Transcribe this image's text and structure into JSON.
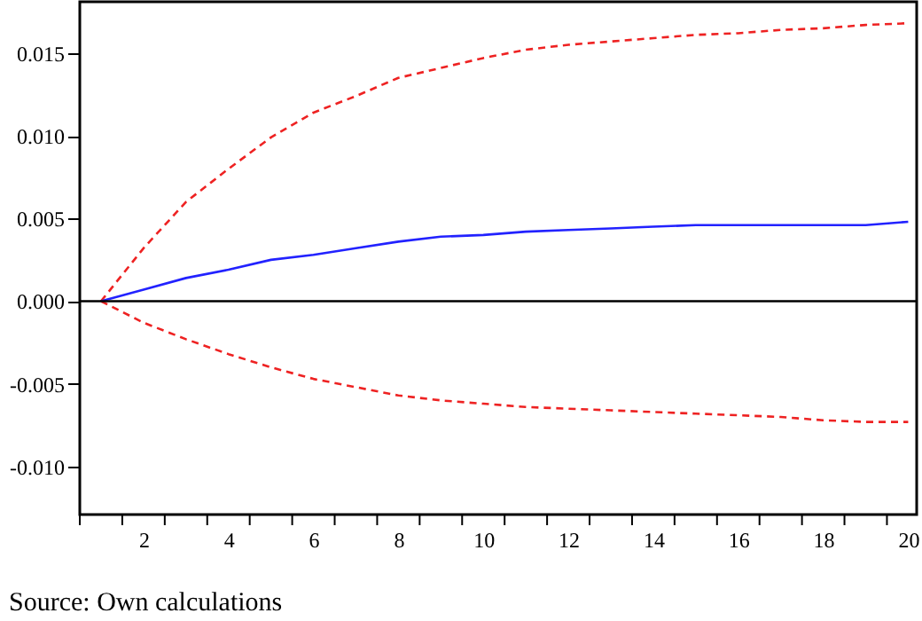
{
  "chart_data": {
    "type": "line",
    "x": [
      1,
      2,
      3,
      4,
      5,
      6,
      7,
      8,
      9,
      10,
      11,
      12,
      13,
      14,
      15,
      16,
      17,
      18,
      19,
      20
    ],
    "series": [
      {
        "color": "#ee2222",
        "line_style": "dashed",
        "values": [
          0,
          0.0032,
          0.006,
          0.008,
          0.0099,
          0.0114,
          0.0124,
          0.0135,
          0.0141,
          0.0147,
          0.0152,
          0.0155,
          0.0157,
          0.0159,
          0.0161,
          0.0162,
          0.0164,
          0.0165,
          0.0167,
          0.0168
        ]
      },
      {
        "color": "#2222ff",
        "line_style": "solid",
        "values": [
          0,
          0.0007,
          0.0014,
          0.0019,
          0.0025,
          0.0028,
          0.0032,
          0.0036,
          0.0039,
          0.004,
          0.0042,
          0.0043,
          0.0044,
          0.0045,
          0.0046,
          0.0046,
          0.0046,
          0.0046,
          0.0046,
          0.0048
        ]
      },
      {
        "color": "#ee2222",
        "line_style": "dashed",
        "values": [
          0,
          -0.0013,
          -0.0023,
          -0.0032,
          -0.004,
          -0.0047,
          -0.0052,
          -0.0057,
          -0.006,
          -0.0062,
          -0.0064,
          -0.0065,
          -0.0066,
          -0.0067,
          -0.0068,
          -0.0069,
          -0.007,
          -0.0072,
          -0.0073,
          -0.0073
        ]
      }
    ],
    "xlim": [
      0.5,
      20.2
    ],
    "xticks": [
      {
        "value": 0.5,
        "label": null
      },
      {
        "value": 1.5,
        "label": null
      },
      2,
      {
        "value": 2.5,
        "label": null
      },
      {
        "value": 3.5,
        "label": null
      },
      4,
      {
        "value": 4.5,
        "label": null
      },
      {
        "value": 5.5,
        "label": null
      },
      6,
      {
        "value": 6.5,
        "label": null
      },
      {
        "value": 7.5,
        "label": null
      },
      8,
      {
        "value": 8.5,
        "label": null
      },
      {
        "value": 9.5,
        "label": null
      },
      10,
      {
        "value": 10.5,
        "label": null
      },
      {
        "value": 11.5,
        "label": null
      },
      12,
      {
        "value": 12.5,
        "label": null
      },
      {
        "value": 13.5,
        "label": null
      },
      14,
      {
        "value": 14.5,
        "label": null
      },
      {
        "value": 15.5,
        "label": null
      },
      16,
      {
        "value": 16.5,
        "label": null
      },
      {
        "value": 17.5,
        "label": null
      },
      18,
      {
        "value": 18.5,
        "label": null
      },
      {
        "value": 19.5,
        "label": null
      },
      20
    ],
    "ylim": [
      -0.0129,
      0.0181
    ],
    "yticks": [
      {
        "value": -0.01,
        "label": "-0.010"
      },
      {
        "value": -0.005,
        "label": "-0.005"
      },
      {
        "value": 0,
        "label": "0.000"
      },
      {
        "value": 0.005,
        "label": "0.005"
      },
      {
        "value": 0.01,
        "label": "0.010"
      },
      {
        "value": 0.015,
        "label": "0.015"
      }
    ],
    "ref_lines": [
      {
        "axis": "y",
        "value": 0,
        "color": "#000000",
        "line_style": "solid"
      }
    ],
    "grid": false,
    "marker": "none",
    "annotations": [
      "Source: Own calculations"
    ]
  }
}
